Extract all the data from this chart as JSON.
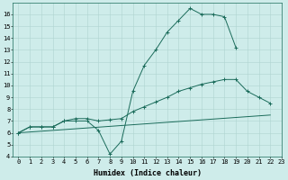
{
  "line1_x": [
    0,
    1,
    2,
    3,
    4,
    5,
    6,
    7,
    8,
    9,
    10,
    11,
    12,
    13,
    14,
    15,
    16,
    17,
    18,
    19
  ],
  "line1_y": [
    6.0,
    6.5,
    6.5,
    6.5,
    7.0,
    7.0,
    7.0,
    6.2,
    4.2,
    5.3,
    9.5,
    11.7,
    13.0,
    14.5,
    15.5,
    16.5,
    16.0,
    16.0,
    15.8,
    13.2
  ],
  "line2_x": [
    0,
    1,
    2,
    3,
    4,
    5,
    6,
    7,
    8,
    9,
    10,
    11,
    12,
    13,
    14,
    15,
    16,
    17,
    18,
    19,
    20,
    21,
    22
  ],
  "line2_y": [
    6.0,
    6.5,
    6.5,
    6.5,
    7.0,
    7.2,
    7.2,
    7.0,
    7.1,
    7.2,
    7.8,
    8.2,
    8.6,
    9.0,
    9.5,
    9.8,
    10.1,
    10.3,
    10.5,
    10.5,
    9.5,
    9.0,
    8.5
  ],
  "line3_x": [
    0,
    22
  ],
  "line3_y": [
    6.0,
    7.5
  ],
  "color": "#1a6b5a",
  "bg_color": "#ceecea",
  "grid_color": "#aed4d0",
  "xlabel": "Humidex (Indice chaleur)",
  "ylim": [
    4,
    17
  ],
  "xlim": [
    -0.5,
    23
  ],
  "yticks": [
    4,
    5,
    6,
    7,
    8,
    9,
    10,
    11,
    12,
    13,
    14,
    15,
    16
  ],
  "xticks": [
    0,
    1,
    2,
    3,
    4,
    5,
    6,
    7,
    8,
    9,
    10,
    11,
    12,
    13,
    14,
    15,
    16,
    17,
    18,
    19,
    20,
    21,
    22,
    23
  ],
  "marker": "+"
}
